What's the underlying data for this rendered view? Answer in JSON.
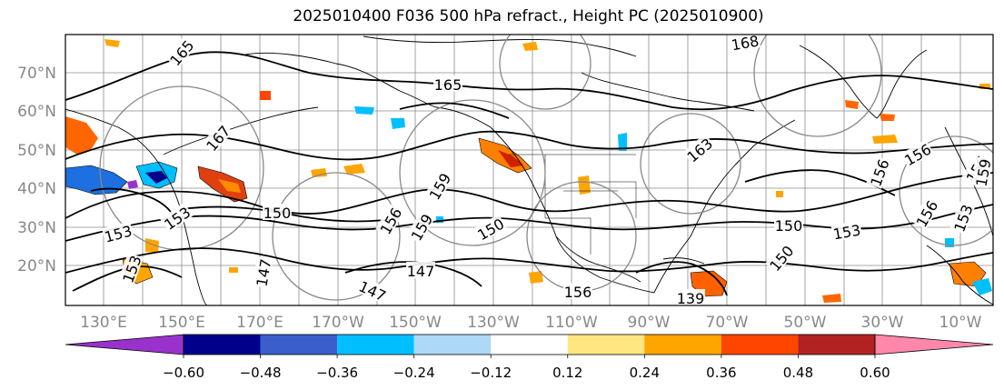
{
  "title": "2025010400 F036 500 hPa refract., Height PC (2025010900)",
  "lat_labels": [
    "70°N",
    "60°N",
    "50°N",
    "40°N",
    "30°N",
    "20°N"
  ],
  "lon_labels": [
    "130°E",
    "150°E",
    "170°E",
    "170°W",
    "150°W",
    "130°W",
    "110°W",
    "90°W",
    "70°W",
    "50°W",
    "30°W",
    "10°W"
  ],
  "colorbar": {
    "colors": [
      "#9932CC",
      "#00008B",
      "#3A5FCD",
      "#00BFFF",
      "#ADD8F6",
      "#FFFFFF",
      "#FFE680",
      "#FFA500",
      "#FF4500",
      "#B22222",
      "#FF88AA"
    ],
    "tick_labels": [
      "−0.60",
      "−0.48",
      "−0.36",
      "−0.24",
      "−0.12",
      "0.12",
      "0.24",
      "0.36",
      "0.48",
      "0.60"
    ]
  },
  "contour_labels": [
    "165",
    "168",
    "165",
    "167",
    "163",
    "156",
    "153",
    "150",
    "153",
    "156",
    "159",
    "150",
    "156",
    "159",
    "153",
    "150",
    "147",
    "147",
    "147",
    "153",
    "156",
    "139",
    "156",
    "150",
    "153",
    "156",
    "159"
  ],
  "colors": {
    "coast": "#000000",
    "grid": "#8c8c8c",
    "contour": "#000000",
    "pc_circle": "#888888"
  }
}
